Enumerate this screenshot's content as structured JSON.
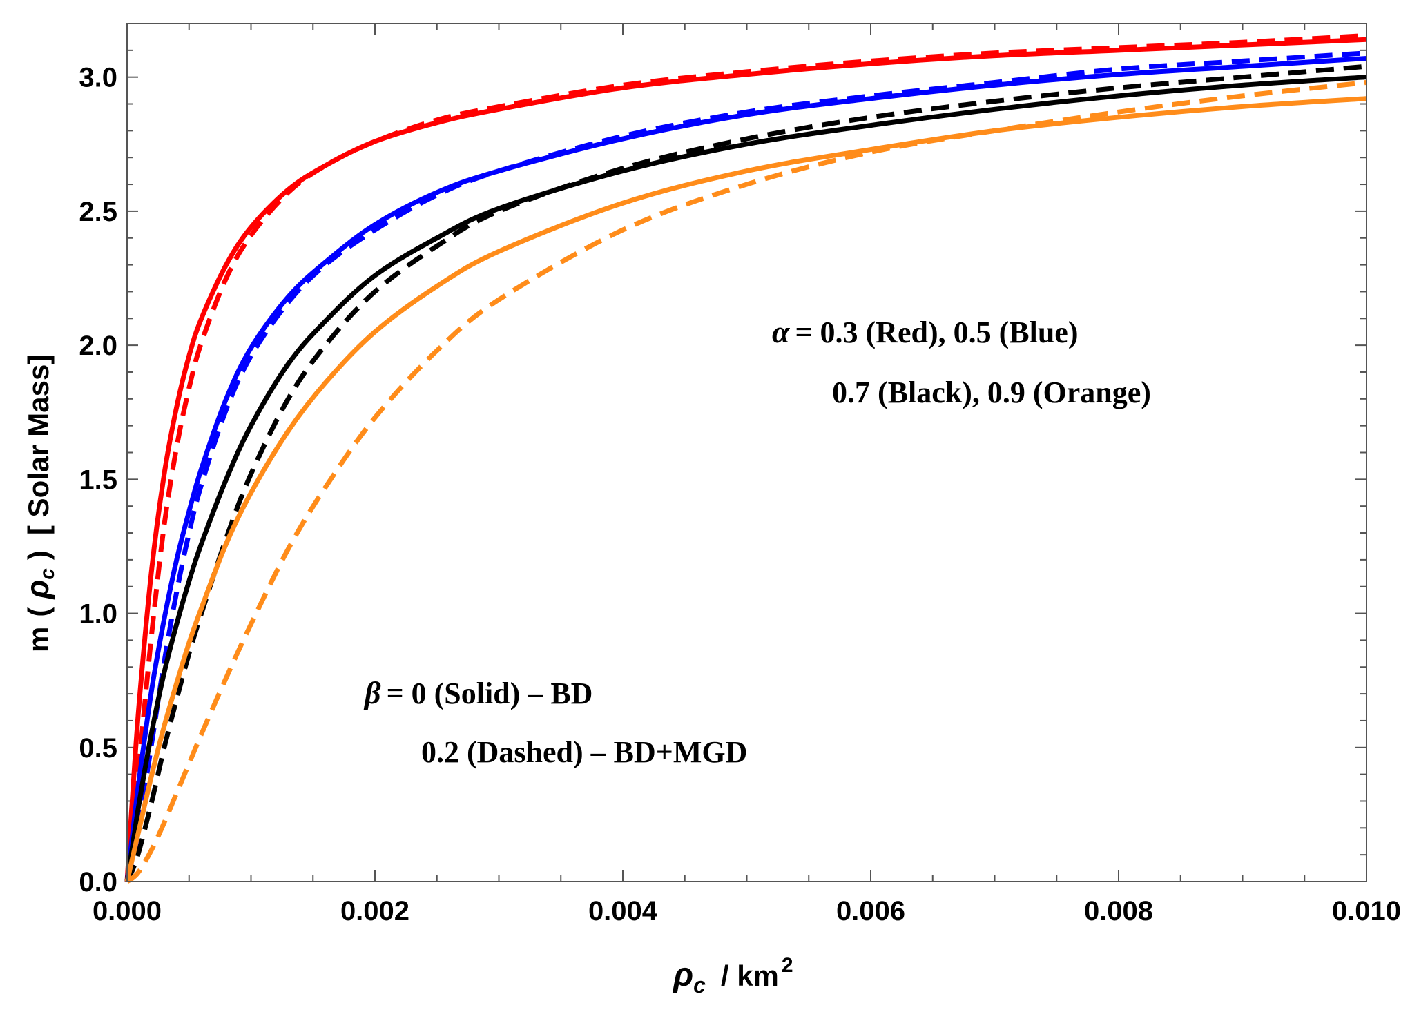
{
  "chart_data": {
    "type": "line",
    "title": "",
    "xlabel": {
      "symbol": "ρ",
      "subscript": "c",
      "unit": "/ km",
      "power": "2"
    },
    "ylabel": {
      "func": "m",
      "open": "(",
      "symbol": "ρ",
      "subscript": "c",
      "close": ")",
      "unit": "[ Solar Mass]"
    },
    "xlim": [
      0,
      0.01
    ],
    "ylim": [
      0,
      3.2
    ],
    "xticks": [
      "0.000",
      "0.002",
      "0.004",
      "0.006",
      "0.008",
      "0.010"
    ],
    "yticks": [
      "0.0",
      "0.5",
      "1.0",
      "1.5",
      "2.0",
      "2.5",
      "3.0"
    ],
    "xtick_values": [
      0,
      0.002,
      0.004,
      0.006,
      0.008,
      0.01
    ],
    "ytick_values": [
      0,
      0.5,
      1.0,
      1.5,
      2.0,
      2.5,
      3.0
    ],
    "colors": {
      "red": "#ff0000",
      "blue": "#0000ff",
      "black": "#000000",
      "orange": "#ff8c1a"
    },
    "series": [
      {
        "name": "α=0.3, β=0 (BD)",
        "color": "#ff0000",
        "dash": false,
        "x": [
          0,
          5e-05,
          0.0001,
          0.0002,
          0.0003,
          0.0004,
          0.0005,
          0.0006,
          0.0008,
          0.001,
          0.0013,
          0.0016,
          0.002,
          0.0025,
          0.003,
          0.004,
          0.005,
          0.006,
          0.007,
          0.008,
          0.009,
          0.01
        ],
        "y": [
          0,
          0.36,
          0.68,
          1.17,
          1.52,
          1.77,
          1.96,
          2.1,
          2.3,
          2.44,
          2.58,
          2.67,
          2.76,
          2.83,
          2.88,
          2.96,
          3.01,
          3.05,
          3.08,
          3.1,
          3.12,
          3.14
        ]
      },
      {
        "name": "α=0.3, β=0.2 (BD+MGD)",
        "color": "#ff0000",
        "dash": true,
        "x": [
          0,
          5e-05,
          0.0001,
          0.0002,
          0.0003,
          0.0004,
          0.0005,
          0.0006,
          0.0008,
          0.001,
          0.0013,
          0.0016,
          0.002,
          0.0025,
          0.003,
          0.004,
          0.005,
          0.006,
          0.007,
          0.008,
          0.009,
          0.01
        ],
        "y": [
          0,
          0.18,
          0.45,
          0.93,
          1.33,
          1.62,
          1.84,
          2.01,
          2.25,
          2.41,
          2.57,
          2.67,
          2.76,
          2.84,
          2.89,
          2.97,
          3.02,
          3.06,
          3.09,
          3.11,
          3.13,
          3.155
        ]
      },
      {
        "name": "α=0.5, β=0 (BD)",
        "color": "#0000ff",
        "dash": false,
        "x": [
          0,
          5e-05,
          0.0001,
          0.0002,
          0.0003,
          0.0004,
          0.0005,
          0.0006,
          0.0008,
          0.001,
          0.0013,
          0.0016,
          0.002,
          0.0025,
          0.003,
          0.004,
          0.005,
          0.006,
          0.007,
          0.008,
          0.009,
          0.01
        ],
        "y": [
          0,
          0.2,
          0.39,
          0.72,
          0.98,
          1.2,
          1.38,
          1.54,
          1.8,
          1.99,
          2.18,
          2.31,
          2.45,
          2.57,
          2.65,
          2.77,
          2.86,
          2.92,
          2.97,
          3.01,
          3.04,
          3.07
        ]
      },
      {
        "name": "α=0.5, β=0.2 (BD+MGD)",
        "color": "#0000ff",
        "dash": true,
        "x": [
          0,
          5e-05,
          0.0001,
          0.0002,
          0.0003,
          0.0004,
          0.0005,
          0.0006,
          0.0008,
          0.001,
          0.0013,
          0.0016,
          0.002,
          0.0025,
          0.003,
          0.004,
          0.005,
          0.006,
          0.007,
          0.008,
          0.009,
          0.01
        ],
        "y": [
          0,
          0.08,
          0.22,
          0.52,
          0.82,
          1.08,
          1.3,
          1.48,
          1.76,
          1.96,
          2.16,
          2.3,
          2.43,
          2.56,
          2.65,
          2.78,
          2.87,
          2.93,
          2.98,
          3.03,
          3.06,
          3.09
        ]
      },
      {
        "name": "α=0.7, β=0 (BD)",
        "color": "#000000",
        "dash": false,
        "x": [
          0,
          5e-05,
          0.0001,
          0.0002,
          0.0003,
          0.0004,
          0.0005,
          0.0006,
          0.0008,
          0.001,
          0.0013,
          0.0016,
          0.002,
          0.0025,
          0.003,
          0.004,
          0.005,
          0.006,
          0.007,
          0.008,
          0.009,
          0.01
        ],
        "y": [
          0,
          0.15,
          0.3,
          0.56,
          0.78,
          0.96,
          1.12,
          1.26,
          1.5,
          1.7,
          1.93,
          2.09,
          2.26,
          2.4,
          2.51,
          2.65,
          2.75,
          2.82,
          2.88,
          2.93,
          2.97,
          3.0
        ]
      },
      {
        "name": "α=0.7, β=0.2 (BD+MGD)",
        "color": "#000000",
        "dash": true,
        "x": [
          0,
          5e-05,
          0.0001,
          0.0002,
          0.0003,
          0.0004,
          0.0005,
          0.0006,
          0.0008,
          0.001,
          0.0013,
          0.0016,
          0.002,
          0.0025,
          0.003,
          0.004,
          0.005,
          0.006,
          0.007,
          0.008,
          0.009,
          0.01
        ],
        "y": [
          0,
          0.05,
          0.12,
          0.3,
          0.5,
          0.68,
          0.85,
          1.0,
          1.28,
          1.52,
          1.8,
          2.0,
          2.2,
          2.37,
          2.5,
          2.66,
          2.77,
          2.85,
          2.91,
          2.96,
          3.0,
          3.04
        ]
      },
      {
        "name": "α=0.9, β=0 (BD)",
        "color": "#ff8c1a",
        "dash": false,
        "x": [
          0,
          5e-05,
          0.0001,
          0.0002,
          0.0003,
          0.0004,
          0.0005,
          0.0006,
          0.0008,
          0.001,
          0.0013,
          0.0016,
          0.002,
          0.0025,
          0.003,
          0.004,
          0.005,
          0.006,
          0.007,
          0.008,
          0.009,
          0.01
        ],
        "y": [
          0,
          0.1,
          0.2,
          0.4,
          0.58,
          0.74,
          0.89,
          1.02,
          1.26,
          1.45,
          1.68,
          1.86,
          2.05,
          2.22,
          2.35,
          2.53,
          2.65,
          2.73,
          2.8,
          2.85,
          2.89,
          2.92
        ]
      },
      {
        "name": "α=0.9, β=0.2 (BD+MGD)",
        "color": "#ff8c1a",
        "dash": true,
        "x": [
          0,
          5e-05,
          0.0001,
          0.0002,
          0.0003,
          0.0004,
          0.0005,
          0.0006,
          0.0008,
          0.001,
          0.0013,
          0.0016,
          0.002,
          0.0025,
          0.003,
          0.004,
          0.005,
          0.006,
          0.007,
          0.008,
          0.009,
          0.01
        ],
        "y": [
          0,
          0.015,
          0.04,
          0.12,
          0.22,
          0.33,
          0.44,
          0.55,
          0.76,
          0.96,
          1.24,
          1.47,
          1.73,
          1.98,
          2.17,
          2.43,
          2.6,
          2.72,
          2.8,
          2.87,
          2.93,
          2.98
        ]
      }
    ],
    "annotations": {
      "alpha": {
        "symbol": "α",
        "line1": "= 0.3 (Red), 0.5 (Blue)",
        "line2": "0.7 (Black), 0.9 (Orange)"
      },
      "beta": {
        "symbol": "β",
        "line1": "= 0 (Solid) – BD",
        "line2": "0.2 (Dashed) – BD+MGD"
      }
    }
  }
}
